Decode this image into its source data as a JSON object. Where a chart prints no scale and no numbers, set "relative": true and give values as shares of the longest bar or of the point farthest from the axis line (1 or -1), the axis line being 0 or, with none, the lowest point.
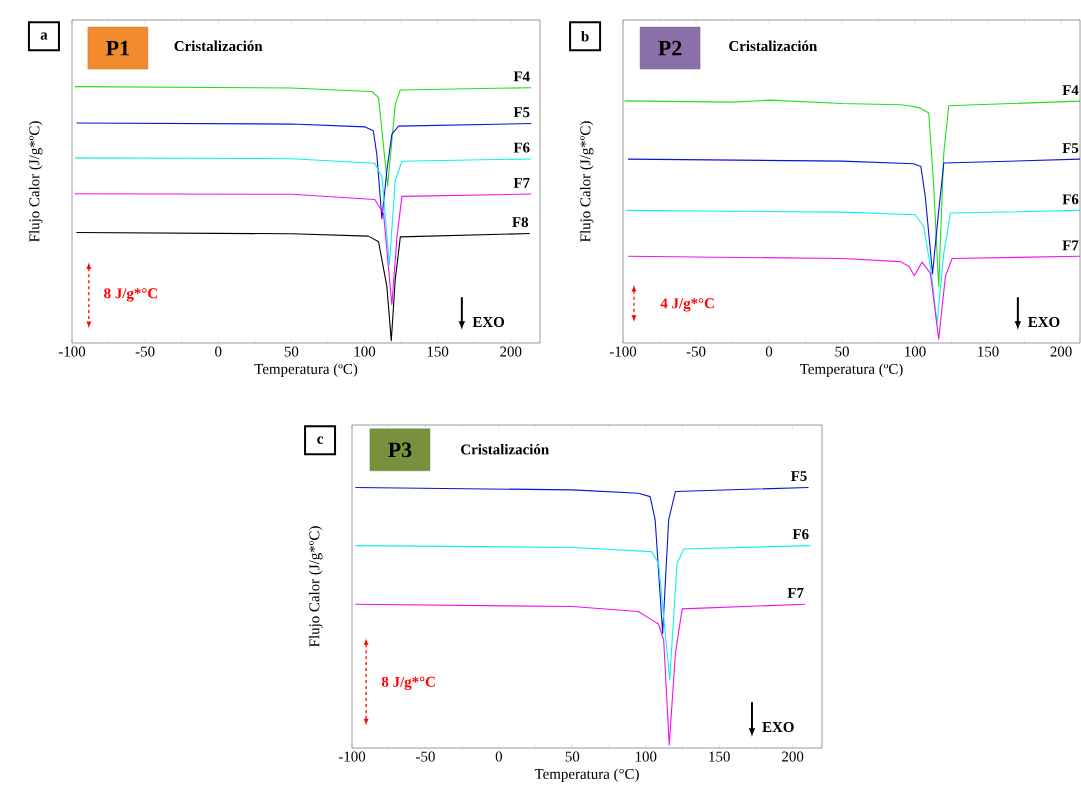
{
  "chart_data": [
    {
      "type": "line",
      "title": "Cristalización",
      "xlabel": "Temperatura (ºC)",
      "ylabel": "Flujo Calor (J/g*ºC)",
      "relative": true,
      "annotations": [
        "a",
        "P1",
        "8 J/g*°C",
        "EXO"
      ],
      "xlim": [
        -100,
        220
      ],
      "xticks": [
        -100,
        -50,
        0,
        50,
        100,
        150,
        200
      ],
      "series": [
        {
          "name": "F4",
          "color": "#1fe01f",
          "x": [
            -98,
            50,
            105,
            109.6,
            115.8,
            121,
            124.5,
            214
          ],
          "values": [
            1.0,
            0.995,
            0.981,
            0.957,
            0.612,
            0.931,
            0.987,
            0.996
          ]
        },
        {
          "name": "F5",
          "color": "#0a14d8",
          "x": [
            -97,
            50,
            100.4,
            106,
            108.4,
            111.9,
            115.3,
            118.7,
            123.3,
            214
          ],
          "values": [
            0.858,
            0.854,
            0.843,
            0.828,
            0.737,
            0.485,
            0.673,
            0.815,
            0.846,
            0.856
          ]
        },
        {
          "name": "F6",
          "color": "#10f0f0",
          "x": [
            -98,
            50,
            107,
            112,
            117,
            121,
            125.6,
            214
          ],
          "values": [
            0.722,
            0.719,
            0.701,
            0.647,
            0.304,
            0.634,
            0.709,
            0.718
          ]
        },
        {
          "name": "F7",
          "color": "#f010f0",
          "x": [
            -98,
            50,
            107,
            113,
            118.7,
            122.2,
            125.6,
            214
          ],
          "values": [
            0.582,
            0.58,
            0.56,
            0.505,
            0.149,
            0.414,
            0.572,
            0.581
          ]
        },
        {
          "name": "F8",
          "color": "#000000",
          "x": [
            -97,
            50,
            102.7,
            109.6,
            115.3,
            118.3,
            121,
            124.5,
            213
          ],
          "values": [
            0.431,
            0.426,
            0.417,
            0.395,
            0.22,
            0.009,
            0.246,
            0.414,
            0.427
          ]
        }
      ]
    },
    {
      "type": "line",
      "title": "Cristalización",
      "xlabel": "Temperatura (ºC)",
      "ylabel": "Flujo Calor (J/g*ºC)",
      "relative": true,
      "annotations": [
        "b",
        "P2",
        "4 J/g*°C",
        "EXO"
      ],
      "xlim": [
        -100,
        213
      ],
      "xticks": [
        -100,
        -50,
        0,
        50,
        100,
        150,
        200
      ],
      "series": [
        {
          "name": "F4",
          "color": "#1fe01f",
          "x": [
            -99,
            -25,
            0.7,
            50,
            90,
            96,
            103.7,
            109.4,
            112.8,
            116.2,
            119.7,
            123.1,
            213
          ],
          "values": [
            0.997,
            0.992,
            1.0,
            0.986,
            0.981,
            0.977,
            0.967,
            0.947,
            0.645,
            0.233,
            0.782,
            0.977,
            0.996
          ]
        },
        {
          "name": "F5",
          "color": "#0a14d8",
          "x": [
            -96.6,
            50,
            99,
            104,
            107,
            112,
            115.6,
            119.7,
            213
          ],
          "values": [
            0.757,
            0.749,
            0.738,
            0.727,
            0.604,
            0.285,
            0.508,
            0.741,
            0.757
          ]
        },
        {
          "name": "F6",
          "color": "#10f0f0",
          "x": [
            -97.7,
            50,
            100.2,
            106,
            111.2,
            115.1,
            119.7,
            124.3,
            213
          ],
          "values": [
            0.546,
            0.539,
            0.528,
            0.48,
            0.288,
            0.082,
            0.37,
            0.535,
            0.546
          ]
        },
        {
          "name": "F7",
          "color": "#f010f0",
          "x": [
            -96.6,
            50,
            90,
            95.7,
            99.5,
            104.8,
            110.5,
            116.2,
            120.8,
            125.4,
            213
          ],
          "values": [
            0.357,
            0.348,
            0.335,
            0.316,
            0.277,
            0.333,
            0.288,
            0.016,
            0.274,
            0.348,
            0.357
          ]
        }
      ]
    },
    {
      "type": "line",
      "title": "Cristalización",
      "xlabel": "Temperatura (°C)",
      "ylabel": "Flujo Calor (J/g*ºC)",
      "relative": true,
      "annotations": [
        "c",
        "P3",
        "8 J/g*°C",
        "EXO"
      ],
      "xlim": [
        -100,
        220
      ],
      "xticks": [
        -100,
        -50,
        0,
        50,
        100,
        150,
        200
      ],
      "series": [
        {
          "name": "F5",
          "color": "#0a14d8",
          "x": [
            -97.7,
            50,
            95,
            103,
            106.4,
            111.5,
            115.6,
            120.2,
            210.8
          ],
          "values": [
            1.0,
            0.991,
            0.978,
            0.965,
            0.876,
            0.44,
            0.876,
            0.985,
            1.0
          ]
        },
        {
          "name": "F6",
          "color": "#10f0f0",
          "x": [
            -97.7,
            50,
            104,
            108.7,
            116.3,
            121.3,
            125.9,
            212
          ],
          "values": [
            0.777,
            0.77,
            0.754,
            0.709,
            0.261,
            0.709,
            0.764,
            0.777
          ]
        },
        {
          "name": "F7",
          "color": "#f010f0",
          "x": [
            -97.7,
            50,
            95,
            104,
            108.7,
            112.2,
            116,
            120.2,
            124.8,
            208.5
          ],
          "values": [
            0.552,
            0.543,
            0.524,
            0.492,
            0.476,
            0.415,
            0.012,
            0.364,
            0.534,
            0.552
          ]
        }
      ]
    }
  ]
}
